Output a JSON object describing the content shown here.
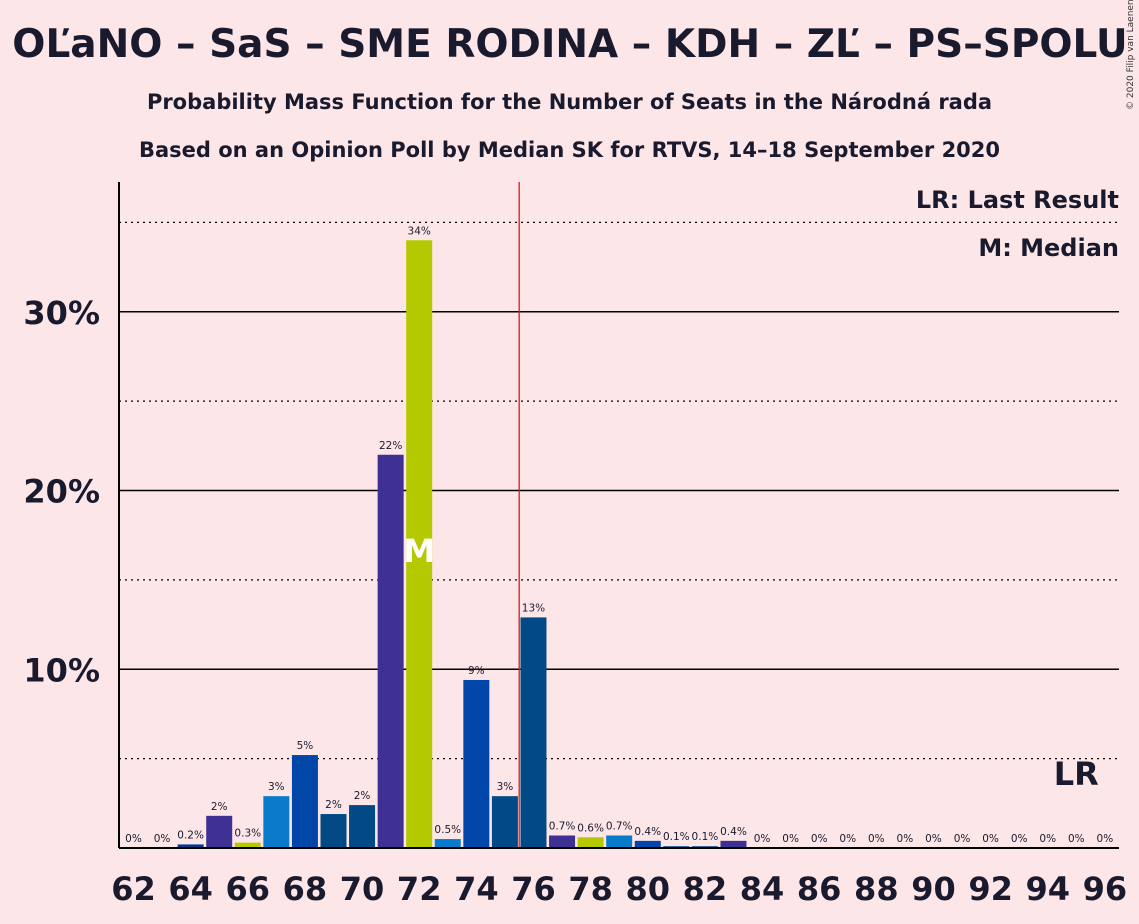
{
  "title": "OĽaNO – SaS – SME RODINA – KDH – ZĽ – PS–SPOLU",
  "subtitle1": "Probability Mass Function for the Number of Seats in the Národná rada",
  "subtitle2": "Based on an Opinion Poll by Median SK for RTVS, 14–18 September 2020",
  "copyright": "© 2020 Filip van Laenen",
  "legend": {
    "lr": "LR: Last Result",
    "m": "M: Median"
  },
  "colors": {
    "background": "#fde6e8",
    "majority_line": "#e8151b",
    "text": "#1a1a2e"
  },
  "chart_data": {
    "type": "bar",
    "xlim": [
      62,
      96
    ],
    "ylim": [
      0,
      37
    ],
    "y_ticks": [
      10,
      20,
      30
    ],
    "y_tick_labels": [
      "10%",
      "20%",
      "30%"
    ],
    "x_tick_labels": [
      "62",
      "64",
      "66",
      "68",
      "70",
      "72",
      "74",
      "76",
      "78",
      "80",
      "82",
      "84",
      "86",
      "88",
      "90",
      "92",
      "94",
      "96"
    ],
    "majority_line_x": 75.5,
    "median_seat": 72,
    "median_marker": "M",
    "last_result_seat": 95,
    "last_result_marker": "LR",
    "bars": [
      {
        "seat": 62,
        "value": 0,
        "label": "0%",
        "color": "#3f3194"
      },
      {
        "seat": 63,
        "value": 0,
        "label": "0%",
        "color": "#3f3194"
      },
      {
        "seat": 64,
        "value": 0.2,
        "label": "0.2%",
        "color": "#003a8c"
      },
      {
        "seat": 65,
        "value": 1.8,
        "label": "2%",
        "color": "#3f3194"
      },
      {
        "seat": 66,
        "value": 0.3,
        "label": "0.3%",
        "color": "#b5c900"
      },
      {
        "seat": 67,
        "value": 2.9,
        "label": "3%",
        "color": "#0a7acb"
      },
      {
        "seat": 68,
        "value": 5.2,
        "label": "5%",
        "color": "#0046a8"
      },
      {
        "seat": 69,
        "value": 1.9,
        "label": "2%",
        "color": "#014a86"
      },
      {
        "seat": 70,
        "value": 2.4,
        "label": "2%",
        "color": "#014a86"
      },
      {
        "seat": 71,
        "value": 22.0,
        "label": "22%",
        "color": "#3f3194"
      },
      {
        "seat": 72,
        "value": 34.0,
        "label": "34%",
        "color": "#b5c900"
      },
      {
        "seat": 73,
        "value": 0.5,
        "label": "0.5%",
        "color": "#0a7acb"
      },
      {
        "seat": 74,
        "value": 9.4,
        "label": "9%",
        "color": "#0046a8"
      },
      {
        "seat": 75,
        "value": 2.9,
        "label": "3%",
        "color": "#014a86"
      },
      {
        "seat": 76,
        "value": 12.9,
        "label": "13%",
        "color": "#014a86"
      },
      {
        "seat": 77,
        "value": 0.7,
        "label": "0.7%",
        "color": "#3f3194"
      },
      {
        "seat": 78,
        "value": 0.6,
        "label": "0.6%",
        "color": "#b5c900"
      },
      {
        "seat": 79,
        "value": 0.7,
        "label": "0.7%",
        "color": "#0a7acb"
      },
      {
        "seat": 80,
        "value": 0.4,
        "label": "0.4%",
        "color": "#0046a8"
      },
      {
        "seat": 81,
        "value": 0.1,
        "label": "0.1%",
        "color": "#014a86"
      },
      {
        "seat": 82,
        "value": 0.1,
        "label": "0.1%",
        "color": "#014a86"
      },
      {
        "seat": 83,
        "value": 0.4,
        "label": "0.4%",
        "color": "#3f3194"
      },
      {
        "seat": 84,
        "value": 0,
        "label": "0%",
        "color": "#3f3194"
      },
      {
        "seat": 85,
        "value": 0,
        "label": "0%",
        "color": "#3f3194"
      },
      {
        "seat": 86,
        "value": 0,
        "label": "0%",
        "color": "#3f3194"
      },
      {
        "seat": 87,
        "value": 0,
        "label": "0%",
        "color": "#3f3194"
      },
      {
        "seat": 88,
        "value": 0,
        "label": "0%",
        "color": "#3f3194"
      },
      {
        "seat": 89,
        "value": 0,
        "label": "0%",
        "color": "#3f3194"
      },
      {
        "seat": 90,
        "value": 0,
        "label": "0%",
        "color": "#3f3194"
      },
      {
        "seat": 91,
        "value": 0,
        "label": "0%",
        "color": "#3f3194"
      },
      {
        "seat": 92,
        "value": 0,
        "label": "0%",
        "color": "#3f3194"
      },
      {
        "seat": 93,
        "value": 0,
        "label": "0%",
        "color": "#3f3194"
      },
      {
        "seat": 94,
        "value": 0,
        "label": "0%",
        "color": "#3f3194"
      },
      {
        "seat": 95,
        "value": 0,
        "label": "0%",
        "color": "#3f3194"
      },
      {
        "seat": 96,
        "value": 0,
        "label": "0%",
        "color": "#3f3194"
      }
    ]
  }
}
